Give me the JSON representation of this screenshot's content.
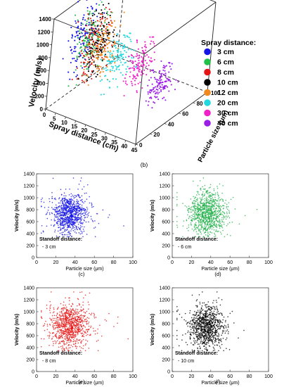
{
  "chart_data": [
    {
      "type": "scatter",
      "panel": "(b)",
      "xlabel": "Spray distance (cm)",
      "ylabel": "Velocity (m/s)",
      "zlabel": "Particle size (μm)",
      "x_ticks": [
        0,
        5,
        10,
        15,
        20,
        25,
        30,
        35,
        40,
        45
      ],
      "y_ticks": [
        0,
        200,
        400,
        600,
        800,
        1000,
        1200,
        1400
      ],
      "z_ticks": [
        0,
        20,
        40,
        60,
        80,
        100
      ],
      "xlim": [
        0,
        45
      ],
      "ylim": [
        0,
        1400
      ],
      "zlim": [
        0,
        100
      ],
      "legend_title": "Spray distance:",
      "legend_position": "right",
      "series": [
        {
          "name": "3 cm",
          "distance": 3,
          "color": "#1414e6",
          "velocity_range": [
            300,
            1400
          ],
          "size_range": [
            15,
            60
          ]
        },
        {
          "name": "6 cm",
          "distance": 6,
          "color": "#22c24a",
          "velocity_range": [
            300,
            1400
          ],
          "size_range": [
            15,
            60
          ]
        },
        {
          "name": "8 cm",
          "distance": 8,
          "color": "#e61414",
          "velocity_range": [
            300,
            1400
          ],
          "size_range": [
            15,
            60
          ]
        },
        {
          "name": "10 cm",
          "distance": 10,
          "color": "#000000",
          "velocity_range": [
            300,
            1400
          ],
          "size_range": [
            15,
            60
          ]
        },
        {
          "name": "12 cm",
          "distance": 12,
          "color": "#f08a1e",
          "velocity_range": [
            300,
            1300
          ],
          "size_range": [
            15,
            60
          ]
        },
        {
          "name": "20 cm",
          "distance": 20,
          "color": "#20d8e0",
          "velocity_range": [
            300,
            1100
          ],
          "size_range": [
            20,
            60
          ]
        },
        {
          "name": "30 cm",
          "distance": 30,
          "color": "#f020c8",
          "velocity_range": [
            300,
            1100
          ],
          "size_range": [
            20,
            60
          ]
        },
        {
          "name": "40 cm",
          "distance": 40,
          "color": "#9a1ee6",
          "velocity_range": [
            250,
            800
          ],
          "size_range": [
            25,
            60
          ]
        }
      ]
    },
    {
      "type": "scatter",
      "panel": "(c)",
      "color": "#1414e6",
      "xlabel": "Particle size (μm)",
      "ylabel": "Velocity (m/s)",
      "xlim": [
        0,
        100
      ],
      "ylim": [
        0,
        1400
      ],
      "x_ticks": [
        0,
        20,
        40,
        60,
        80,
        100
      ],
      "y_ticks": [
        0,
        200,
        400,
        600,
        800,
        1000,
        1200,
        1400
      ],
      "annotation_title": "Standoff distance:",
      "annotation_value": "- 3 cm",
      "cluster_center": [
        35,
        720
      ],
      "spread": [
        9,
        170
      ]
    },
    {
      "type": "scatter",
      "panel": "(d)",
      "color": "#22b04a",
      "xlabel": "Particle size (μm)",
      "ylabel": "Velocity (m/s)",
      "xlim": [
        0,
        100
      ],
      "ylim": [
        0,
        1400
      ],
      "x_ticks": [
        0,
        20,
        40,
        60,
        80,
        100
      ],
      "y_ticks": [
        0,
        200,
        400,
        600,
        800,
        1000,
        1200,
        1400
      ],
      "annotation_title": "Standoff distance:",
      "annotation_value": "- 6 cm",
      "cluster_center": [
        36,
        740
      ],
      "spread": [
        9,
        180
      ]
    },
    {
      "type": "scatter",
      "panel": "(e)",
      "color": "#e61414",
      "xlabel": "Particle size (μm)",
      "ylabel": "Velocity (m/s)",
      "xlim": [
        0,
        100
      ],
      "ylim": [
        0,
        1400
      ],
      "x_ticks": [
        0,
        20,
        40,
        60,
        80,
        100
      ],
      "y_ticks": [
        0,
        200,
        400,
        600,
        800,
        1000,
        1200,
        1400
      ],
      "annotation_title": "Standoff distance:",
      "annotation_value": "- 8 cm",
      "cluster_center": [
        35,
        760
      ],
      "spread": [
        10,
        190
      ]
    },
    {
      "type": "scatter",
      "panel": "(f)",
      "color": "#000000",
      "xlabel": "Particle size (μm)",
      "ylabel": "Velocity (m/s)",
      "xlim": [
        0,
        100
      ],
      "ylim": [
        0,
        1400
      ],
      "x_ticks": [
        0,
        20,
        40,
        60,
        80,
        100
      ],
      "y_ticks": [
        0,
        200,
        400,
        600,
        800,
        1000,
        1200,
        1400
      ],
      "annotation_title": "Standoff distance:",
      "annotation_value": "- 10 cm",
      "cluster_center": [
        35,
        740
      ],
      "spread": [
        9,
        180
      ]
    }
  ]
}
